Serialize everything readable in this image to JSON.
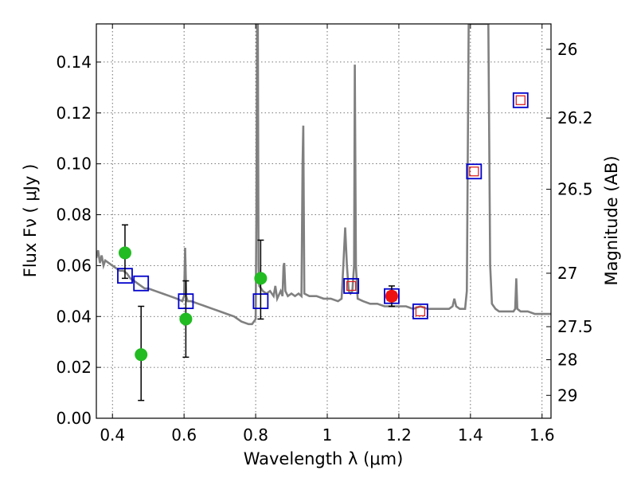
{
  "chart_data": {
    "type": "scatter",
    "xlabel": "Wavelength  λ (μm)",
    "ylabel": "Flux  Fν  ( μJy )",
    "y2label": "Magnitude (AB)",
    "xlim": [
      0.355,
      1.625
    ],
    "ylim": [
      0.0,
      0.155
    ],
    "x_ticks": [
      0.4,
      0.6,
      0.8,
      1.0,
      1.2,
      1.4,
      1.6
    ],
    "x_tick_labels": [
      "0.4",
      "0.6",
      "0.8",
      "1",
      "1.2",
      "1.4",
      "1.6"
    ],
    "y_ticks": [
      0.0,
      0.02,
      0.04,
      0.06,
      0.08,
      0.1,
      0.12,
      0.14
    ],
    "y_tick_labels": [
      "0.00",
      "0.02",
      "0.04",
      "0.06",
      "0.08",
      "0.10",
      "0.12",
      "0.14"
    ],
    "y2_ticks": [
      {
        "label": "26",
        "flux": 0.145
      },
      {
        "label": "26.2",
        "flux": 0.118
      },
      {
        "label": "26.5",
        "flux": 0.09
      },
      {
        "label": "27",
        "flux": 0.057
      },
      {
        "label": "27.5",
        "flux": 0.036
      },
      {
        "label": "28",
        "flux": 0.023
      },
      {
        "label": "29",
        "flux": 0.009
      }
    ],
    "grid": true,
    "colors": {
      "spectrum": "#808080",
      "green_points": "#22bb22",
      "red_point": "#ee1111",
      "blue_squares": "#0000cc",
      "red_squares": "#dd2222",
      "error_bars": "#000000"
    },
    "spectrum": [
      [
        0.355,
        0.063
      ],
      [
        0.36,
        0.066
      ],
      [
        0.365,
        0.061
      ],
      [
        0.37,
        0.064
      ],
      [
        0.375,
        0.06
      ],
      [
        0.38,
        0.062
      ],
      [
        0.39,
        0.061
      ],
      [
        0.4,
        0.06
      ],
      [
        0.41,
        0.059
      ],
      [
        0.42,
        0.058
      ],
      [
        0.43,
        0.058
      ],
      [
        0.44,
        0.057
      ],
      [
        0.45,
        0.055
      ],
      [
        0.46,
        0.054
      ],
      [
        0.47,
        0.053
      ],
      [
        0.48,
        0.052
      ],
      [
        0.49,
        0.051
      ],
      [
        0.5,
        0.051
      ],
      [
        0.52,
        0.05
      ],
      [
        0.54,
        0.049
      ],
      [
        0.56,
        0.048
      ],
      [
        0.58,
        0.047
      ],
      [
        0.595,
        0.046
      ],
      [
        0.6,
        0.048
      ],
      [
        0.603,
        0.067
      ],
      [
        0.606,
        0.048
      ],
      [
        0.61,
        0.046
      ],
      [
        0.62,
        0.046
      ],
      [
        0.64,
        0.045
      ],
      [
        0.66,
        0.044
      ],
      [
        0.68,
        0.043
      ],
      [
        0.7,
        0.042
      ],
      [
        0.72,
        0.041
      ],
      [
        0.74,
        0.04
      ],
      [
        0.76,
        0.038
      ],
      [
        0.78,
        0.037
      ],
      [
        0.79,
        0.037
      ],
      [
        0.8,
        0.039
      ],
      [
        0.802,
        0.08
      ],
      [
        0.804,
        0.155
      ],
      [
        0.806,
        0.155
      ],
      [
        0.808,
        0.06
      ],
      [
        0.81,
        0.052
      ],
      [
        0.82,
        0.05
      ],
      [
        0.83,
        0.049
      ],
      [
        0.84,
        0.05
      ],
      [
        0.85,
        0.048
      ],
      [
        0.855,
        0.052
      ],
      [
        0.86,
        0.047
      ],
      [
        0.87,
        0.05
      ],
      [
        0.875,
        0.048
      ],
      [
        0.878,
        0.06
      ],
      [
        0.88,
        0.061
      ],
      [
        0.883,
        0.05
      ],
      [
        0.89,
        0.048
      ],
      [
        0.9,
        0.049
      ],
      [
        0.91,
        0.048
      ],
      [
        0.92,
        0.049
      ],
      [
        0.928,
        0.048
      ],
      [
        0.931,
        0.1
      ],
      [
        0.933,
        0.115
      ],
      [
        0.936,
        0.049
      ],
      [
        0.95,
        0.048
      ],
      [
        0.97,
        0.048
      ],
      [
        0.99,
        0.047
      ],
      [
        1.01,
        0.047
      ],
      [
        1.03,
        0.046
      ],
      [
        1.04,
        0.047
      ],
      [
        1.045,
        0.06
      ],
      [
        1.05,
        0.075
      ],
      [
        1.055,
        0.06
      ],
      [
        1.06,
        0.05
      ],
      [
        1.065,
        0.049
      ],
      [
        1.07,
        0.05
      ],
      [
        1.075,
        0.06
      ],
      [
        1.077,
        0.139
      ],
      [
        1.08,
        0.06
      ],
      [
        1.085,
        0.047
      ],
      [
        1.1,
        0.046
      ],
      [
        1.12,
        0.045
      ],
      [
        1.14,
        0.045
      ],
      [
        1.16,
        0.044
      ],
      [
        1.18,
        0.044
      ],
      [
        1.2,
        0.044
      ],
      [
        1.22,
        0.044
      ],
      [
        1.24,
        0.043
      ],
      [
        1.26,
        0.044
      ],
      [
        1.28,
        0.043
      ],
      [
        1.3,
        0.043
      ],
      [
        1.32,
        0.043
      ],
      [
        1.34,
        0.043
      ],
      [
        1.35,
        0.044
      ],
      [
        1.355,
        0.047
      ],
      [
        1.36,
        0.044
      ],
      [
        1.37,
        0.043
      ],
      [
        1.385,
        0.043
      ],
      [
        1.39,
        0.05
      ],
      [
        1.395,
        0.155
      ],
      [
        1.41,
        0.155
      ],
      [
        1.42,
        0.155
      ],
      [
        1.43,
        0.155
      ],
      [
        1.45,
        0.155
      ],
      [
        1.455,
        0.06
      ],
      [
        1.46,
        0.045
      ],
      [
        1.47,
        0.043
      ],
      [
        1.48,
        0.042
      ],
      [
        1.5,
        0.042
      ],
      [
        1.52,
        0.042
      ],
      [
        1.525,
        0.043
      ],
      [
        1.528,
        0.055
      ],
      [
        1.531,
        0.043
      ],
      [
        1.54,
        0.042
      ],
      [
        1.56,
        0.042
      ],
      [
        1.58,
        0.041
      ],
      [
        1.6,
        0.041
      ],
      [
        1.625,
        0.041
      ]
    ],
    "green_points": [
      {
        "x": 0.435,
        "y": 0.065,
        "yerr_low": 0.055,
        "yerr_high": 0.076
      },
      {
        "x": 0.48,
        "y": 0.025,
        "yerr_low": 0.007,
        "yerr_high": 0.044
      },
      {
        "x": 0.605,
        "y": 0.039,
        "yerr_low": 0.024,
        "yerr_high": 0.054
      },
      {
        "x": 0.814,
        "y": 0.055,
        "yerr_low": 0.039,
        "yerr_high": 0.07
      }
    ],
    "red_points": [
      {
        "x": 1.18,
        "y": 0.048,
        "yerr_low": 0.044,
        "yerr_high": 0.052
      }
    ],
    "model_squares": [
      {
        "x": 0.435,
        "y": 0.056,
        "red": false
      },
      {
        "x": 0.48,
        "y": 0.053,
        "red": false
      },
      {
        "x": 0.605,
        "y": 0.046,
        "red": false
      },
      {
        "x": 0.814,
        "y": 0.046,
        "red": false
      },
      {
        "x": 1.067,
        "y": 0.052,
        "red": true
      },
      {
        "x": 1.18,
        "y": 0.048,
        "red": true
      },
      {
        "x": 1.26,
        "y": 0.042,
        "red": true
      },
      {
        "x": 1.41,
        "y": 0.097,
        "red": true
      },
      {
        "x": 1.54,
        "y": 0.125,
        "red": true
      }
    ]
  }
}
